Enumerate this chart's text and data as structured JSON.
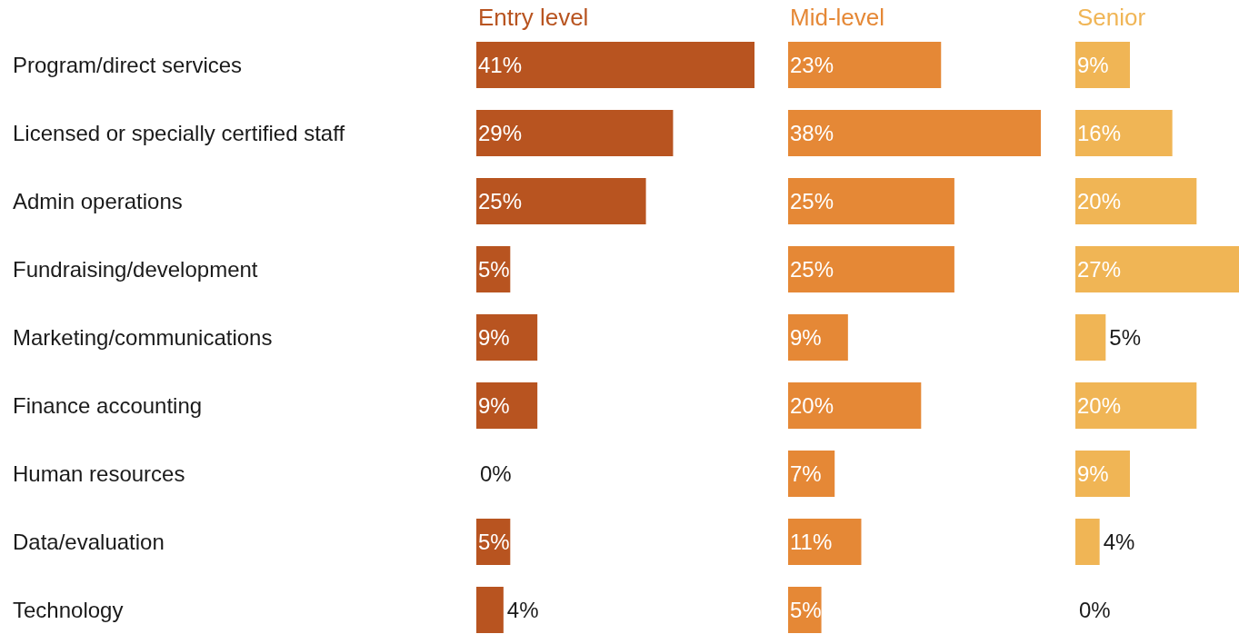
{
  "chart_data": [
    {
      "type": "bar",
      "orientation": "horizontal",
      "title": "Entry level",
      "tick_labels": "y",
      "color": "#b85420",
      "categories": [
        "Program/direct services",
        "Licensed or specially certified staff",
        "Admin operations",
        "Fundraising/development",
        "Marketing/communications",
        "Finance accounting",
        "Human resources",
        "Data/evaluation",
        "Technology"
      ],
      "values": [
        41,
        29,
        25,
        5,
        9,
        9,
        0,
        5,
        4
      ],
      "value_labels": [
        "41%",
        "29%",
        "25%",
        "5%",
        "9%",
        "9%",
        "0%",
        "5%",
        "4%"
      ]
    },
    {
      "type": "bar",
      "orientation": "horizontal",
      "title": "Mid-level",
      "tick_labels": false,
      "color": "#e58836",
      "categories": [
        null,
        null,
        null,
        null,
        null,
        null,
        null,
        null,
        null
      ],
      "values": [
        23,
        38,
        25,
        25,
        9,
        20,
        7,
        11,
        5
      ],
      "value_labels": [
        "23%",
        "38%",
        "25%",
        "25%",
        "9%",
        "20%",
        "7%",
        "11%",
        "5%"
      ]
    },
    {
      "type": "bar",
      "orientation": "horizontal",
      "title": "Senior",
      "tick_labels": false,
      "color": "#f0b555",
      "categories": [
        null,
        null,
        null,
        null,
        null,
        null,
        null,
        null,
        null
      ],
      "values": [
        9,
        16,
        20,
        27,
        5,
        20,
        9,
        4,
        0
      ],
      "value_labels": [
        "9%",
        "16%",
        "20%",
        "27%",
        "5%",
        "20%",
        "9%",
        "4%",
        "0%"
      ]
    }
  ]
}
